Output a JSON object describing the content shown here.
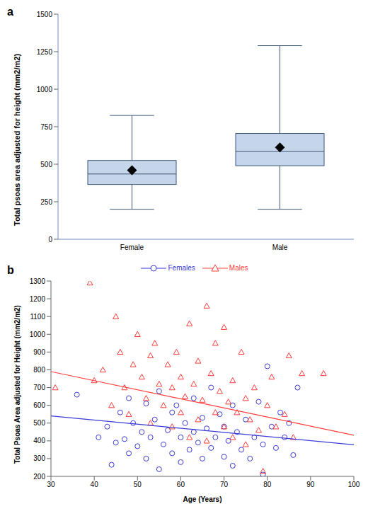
{
  "chart_data": [
    {
      "type": "box",
      "panel_label": "a",
      "categories": [
        "Female",
        "Male"
      ],
      "min": [
        200,
        200
      ],
      "q1": [
        365,
        490
      ],
      "median": [
        435,
        585
      ],
      "q3": [
        525,
        705
      ],
      "max": [
        825,
        1290
      ],
      "mean": [
        460,
        612
      ],
      "color": "#c5d5ea",
      "y_label": "Total psoas area adjusted for height (mm2/m2)",
      "ylim": [
        0,
        1500
      ],
      "yticks": [
        0,
        250,
        500,
        750,
        1000,
        1250,
        1500
      ],
      "grid": false
    },
    {
      "type": "scatter",
      "panel_label": "b",
      "x_label": "Age (Years)",
      "y_label": "Total Psoas Area adjusted for Height (mm2/m2)",
      "xlim": [
        30,
        100
      ],
      "xticks": [
        30,
        40,
        50,
        60,
        70,
        80,
        90,
        100
      ],
      "ylim": [
        200,
        1300
      ],
      "yticks": [
        200,
        300,
        400,
        500,
        600,
        700,
        800,
        900,
        1000,
        1100,
        1200,
        1300
      ],
      "legend": "top",
      "grid": false,
      "series": [
        {
          "name": "Females",
          "color": "#3a3ad6",
          "marker": "circle",
          "x": [
            36,
            41,
            43,
            44,
            45,
            46,
            47,
            48,
            48,
            49,
            50,
            51,
            52,
            52,
            53,
            54,
            55,
            55,
            56,
            57,
            58,
            58,
            59,
            60,
            60,
            61,
            62,
            63,
            63,
            64,
            65,
            65,
            66,
            67,
            67,
            68,
            69,
            70,
            70,
            71,
            72,
            72,
            73,
            74,
            75,
            76,
            77,
            78,
            79,
            79,
            80,
            81,
            82,
            83,
            84,
            85,
            86,
            87
          ],
          "values": [
            660,
            420,
            480,
            265,
            390,
            560,
            410,
            330,
            640,
            500,
            370,
            450,
            610,
            300,
            420,
            520,
            240,
            680,
            380,
            460,
            330,
            560,
            600,
            420,
            280,
            500,
            350,
            450,
            640,
            390,
            300,
            530,
            470,
            360,
            700,
            420,
            550,
            310,
            480,
            400,
            260,
            600,
            450,
            350,
            520,
            300,
            420,
            620,
            210,
            380,
            820,
            480,
            360,
            560,
            420,
            500,
            320,
            700
          ],
          "fit": {
            "x": [
              30,
              100
            ],
            "values": [
              540,
              378
            ]
          }
        },
        {
          "name": "Males",
          "color": "#ff3b3b",
          "marker": "triangle",
          "x": [
            31,
            39,
            40,
            42,
            44,
            45,
            46,
            47,
            48,
            49,
            50,
            51,
            52,
            53,
            53,
            54,
            55,
            56,
            57,
            58,
            58,
            59,
            60,
            60,
            61,
            62,
            62,
            63,
            64,
            64,
            65,
            66,
            66,
            67,
            68,
            68,
            69,
            70,
            70,
            71,
            72,
            72,
            73,
            74,
            75,
            75,
            76,
            77,
            78,
            79,
            80,
            81,
            82,
            84,
            85,
            86,
            88,
            93
          ],
          "values": [
            700,
            1290,
            740,
            800,
            600,
            1100,
            900,
            700,
            550,
            830,
            1000,
            760,
            640,
            880,
            500,
            950,
            720,
            600,
            830,
            480,
            700,
            900,
            560,
            760,
            650,
            1060,
            420,
            720,
            850,
            520,
            630,
            1160,
            400,
            780,
            560,
            950,
            680,
            480,
            1040,
            620,
            740,
            420,
            560,
            900,
            640,
            380,
            520,
            700,
            460,
            230,
            600,
            760,
            480,
            550,
            880,
            420,
            780,
            780
          ],
          "fit": {
            "x": [
              30,
              100
            ],
            "values": [
              790,
              432
            ]
          }
        }
      ]
    }
  ]
}
